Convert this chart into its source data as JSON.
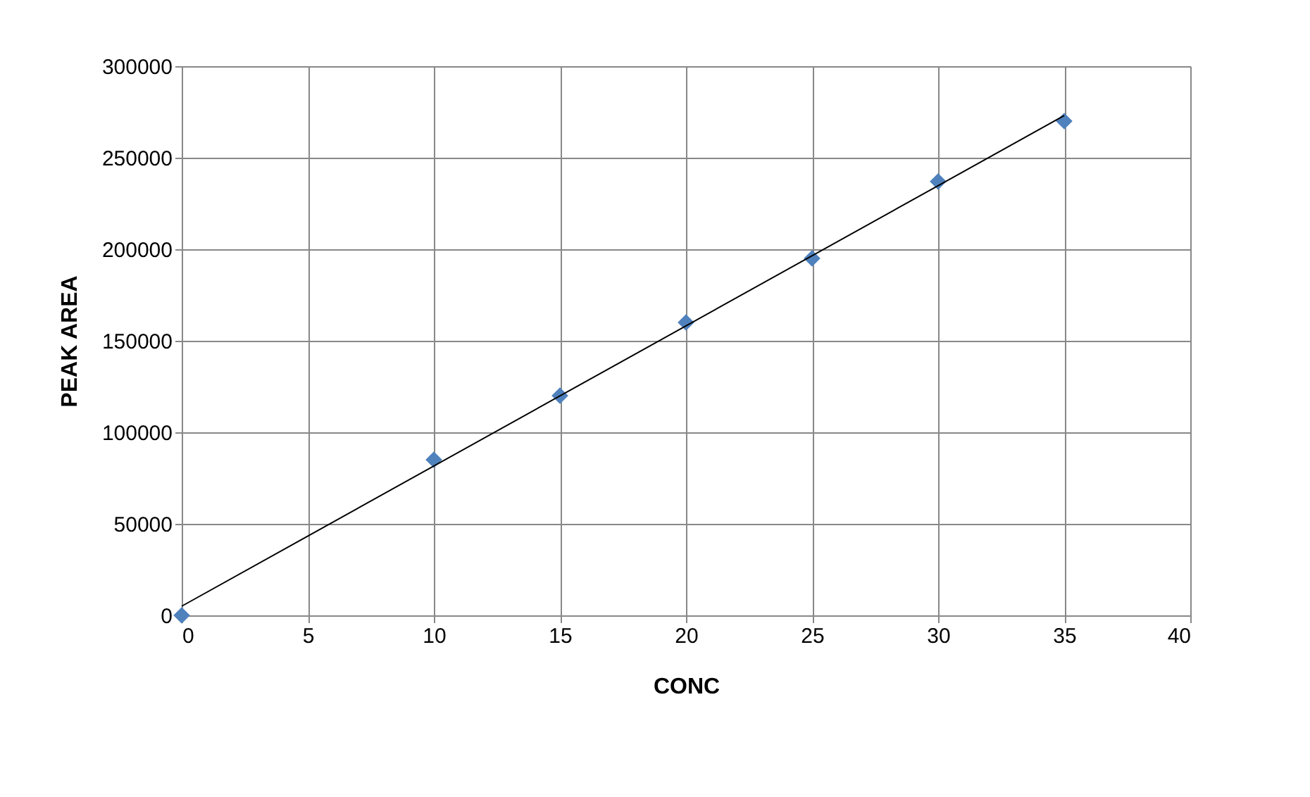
{
  "chart_data": {
    "type": "scatter",
    "xlabel": "CONC",
    "ylabel": "PEAK AREA",
    "marker": "diamond",
    "grid": true,
    "xlim": [
      0,
      40
    ],
    "xticks": [
      0,
      5,
      10,
      15,
      20,
      25,
      30,
      35,
      40
    ],
    "ylim": [
      0,
      300000
    ],
    "yticks": [
      0,
      50000,
      100000,
      150000,
      200000,
      250000,
      300000
    ],
    "series": [
      {
        "color": "#4f81bd",
        "x": [
          0,
          10,
          15,
          20,
          25,
          30,
          35
        ],
        "values": [
          0,
          85000,
          120000,
          160000,
          195000,
          237000,
          270000
        ]
      },
      {
        "type": "line",
        "marker": "none",
        "color": "#000000",
        "x": [
          0,
          35
        ],
        "values": [
          5000,
          273000
        ]
      }
    ]
  }
}
